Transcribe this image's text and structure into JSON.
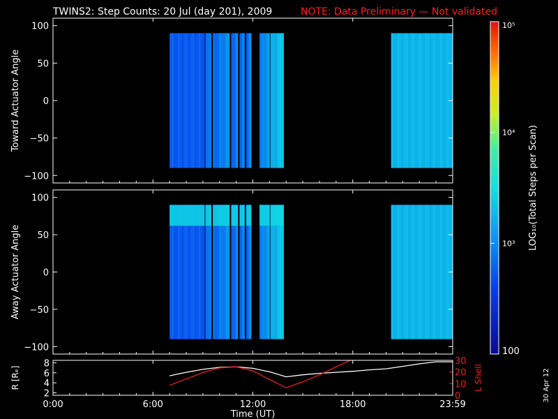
{
  "header": {
    "title": "TWINS2: Step Counts: 20 Jul (day 201), 2009",
    "note": "NOTE: Data Preliminary — Not validated",
    "note_color": "#ff2020"
  },
  "footer": {
    "date_stamp": "30 Apr 12"
  },
  "colorbar": {
    "label": "LOG₁₀(Total Steps per Scan)",
    "ticks": [
      {
        "value": 100,
        "label": "100"
      },
      {
        "value": 1000,
        "label": "10³"
      },
      {
        "value": 10000,
        "label": "10⁴"
      },
      {
        "value": 100000,
        "label": "10⁵"
      }
    ],
    "range": [
      100,
      100000
    ],
    "scale": "log"
  },
  "chart_data": [
    {
      "type": "heatmap",
      "id": "toward",
      "ylabel": "Toward Actuator Angle",
      "xlim": [
        0,
        24
      ],
      "ylim": [
        -110,
        110
      ],
      "yticks": [
        -100,
        -50,
        0,
        50,
        100
      ],
      "ytick_labels": [
        "−100",
        "−50",
        "0",
        "50",
        "100"
      ],
      "angle_range": [
        -90,
        90
      ],
      "segments": [
        {
          "start": 7.0,
          "end": 9.1,
          "log_level": 2.75
        },
        {
          "start": 9.15,
          "end": 9.5,
          "log_level": 2.8
        },
        {
          "start": 9.6,
          "end": 10.6,
          "log_level": 2.8
        },
        {
          "start": 10.7,
          "end": 11.1,
          "log_level": 2.8
        },
        {
          "start": 11.2,
          "end": 11.5,
          "log_level": 2.85
        },
        {
          "start": 11.6,
          "end": 11.9,
          "log_level": 2.85
        },
        {
          "start": 12.4,
          "end": 13.0,
          "log_level": 2.9
        },
        {
          "start": 13.05,
          "end": 13.85,
          "log_level": 3.15
        },
        {
          "start": 20.3,
          "end": 24.0,
          "log_level": 3.25
        }
      ]
    },
    {
      "type": "heatmap",
      "id": "away",
      "ylabel": "Away Actuator Angle",
      "xlim": [
        0,
        24
      ],
      "ylim": [
        -110,
        110
      ],
      "yticks": [
        -100,
        -50,
        0,
        50,
        100
      ],
      "ytick_labels": [
        "−100",
        "−50",
        "0",
        "50",
        "100"
      ],
      "angle_range": [
        -90,
        90
      ],
      "segments": [
        {
          "start": 7.0,
          "end": 9.1,
          "log_level": 2.75
        },
        {
          "start": 9.15,
          "end": 9.5,
          "log_level": 2.8
        },
        {
          "start": 9.6,
          "end": 10.6,
          "log_level": 2.8
        },
        {
          "start": 10.7,
          "end": 11.1,
          "log_level": 2.8
        },
        {
          "start": 11.2,
          "end": 11.5,
          "log_level": 2.85
        },
        {
          "start": 11.6,
          "end": 11.9,
          "log_level": 2.85
        },
        {
          "start": 12.4,
          "end": 13.0,
          "log_level": 2.9
        },
        {
          "start": 13.05,
          "end": 13.85,
          "log_level": 3.15
        },
        {
          "start": 20.3,
          "end": 24.0,
          "log_level": 3.25
        }
      ],
      "hot_band": {
        "angle_min": 62,
        "angle_max": 90,
        "log_level": 3.45
      }
    },
    {
      "type": "line",
      "id": "ephemeris",
      "xlabel": "Time (UT)",
      "ylabel": "R [Rₑ]",
      "ylabel_right": "L Shell",
      "xlim": [
        0,
        24
      ],
      "ylim": [
        1.5,
        8.5
      ],
      "ylim_right": [
        0,
        30
      ],
      "yticks": [
        2,
        4,
        6,
        8
      ],
      "yticks_right": [
        0,
        10,
        20,
        30
      ],
      "xticks": [
        0,
        6,
        12,
        18,
        24
      ],
      "xtick_labels": [
        "0:00",
        "6:00",
        "12:00",
        "18:00",
        "23:59"
      ],
      "series": [
        {
          "axis": "left",
          "color": "#ffffff",
          "x": [
            7.0,
            8.0,
            9.0,
            10.0,
            11.0,
            12.0,
            13.0,
            14.0,
            15.0,
            16.0,
            17.0,
            18.0,
            19.0,
            20.0,
            21.0,
            22.0,
            23.0,
            24.0
          ],
          "y": [
            5.4,
            6.1,
            6.7,
            7.1,
            7.2,
            6.9,
            6.2,
            5.2,
            5.6,
            5.9,
            6.1,
            6.3,
            6.6,
            6.8,
            7.3,
            7.8,
            8.2,
            8.2
          ]
        },
        {
          "axis": "right",
          "color": "#e8231d",
          "x": [
            7.0,
            8.0,
            9.0,
            10.0,
            11.0,
            12.0,
            13.0,
            14.0,
            15.0,
            16.0,
            17.0,
            18.0
          ],
          "y": [
            8.5,
            14.0,
            19.5,
            23.5,
            24.5,
            21.0,
            13.5,
            6.5,
            11.5,
            17.5,
            24.5,
            31.0
          ]
        }
      ]
    }
  ]
}
